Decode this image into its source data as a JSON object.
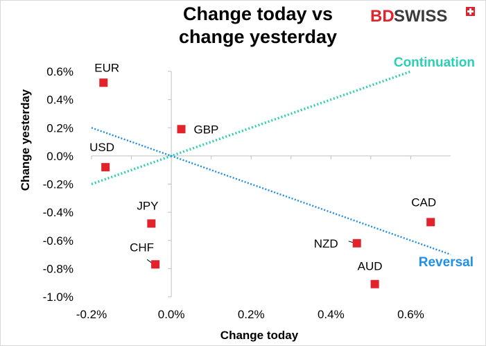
{
  "chart_data": {
    "type": "scatter",
    "title_lines": [
      "Change today vs",
      "change yesterday"
    ],
    "xlabel": "Change today",
    "ylabel": "Change yesterday",
    "xlim": [
      -0.2,
      0.7
    ],
    "ylim": [
      -1.0,
      0.6
    ],
    "x_ticks": [
      -0.2,
      0.0,
      0.2,
      0.4,
      0.6
    ],
    "x_tick_labels": [
      "-0.2%",
      "0.0%",
      "0.2%",
      "0.4%",
      "0.6%"
    ],
    "y_ticks": [
      0.6,
      0.4,
      0.2,
      0.0,
      -0.2,
      -0.4,
      -0.6,
      -0.8,
      -1.0
    ],
    "y_tick_labels": [
      "0.6%",
      "0.4%",
      "0.2%",
      "0.0%",
      "-0.2%",
      "-0.4%",
      "-0.6%",
      "-0.8%",
      "-1.0%"
    ],
    "points": [
      {
        "label": "EUR",
        "x": -0.17,
        "y": 0.52
      },
      {
        "label": "GBP",
        "x": 0.025,
        "y": 0.19
      },
      {
        "label": "USD",
        "x": -0.165,
        "y": -0.08
      },
      {
        "label": "JPY",
        "x": -0.05,
        "y": -0.48
      },
      {
        "label": "CHF",
        "x": -0.04,
        "y": -0.77
      },
      {
        "label": "NZD",
        "x": 0.465,
        "y": -0.62
      },
      {
        "label": "CAD",
        "x": 0.65,
        "y": -0.47
      },
      {
        "label": "AUD",
        "x": 0.51,
        "y": -0.91
      }
    ],
    "lines": [
      {
        "name": "Continuation",
        "x": [
          -0.2,
          0.6
        ],
        "y": [
          -0.2,
          0.6
        ],
        "color": "#2ccfb4"
      },
      {
        "name": "Reversal",
        "x": [
          -0.2,
          0.7
        ],
        "y": [
          0.2,
          -0.7
        ],
        "color": "#1f8fe8"
      }
    ],
    "marker_color": "#e3232c"
  },
  "logo": {
    "part1": "BD",
    "part2": "SWISS",
    "accent": "#e3232c"
  }
}
